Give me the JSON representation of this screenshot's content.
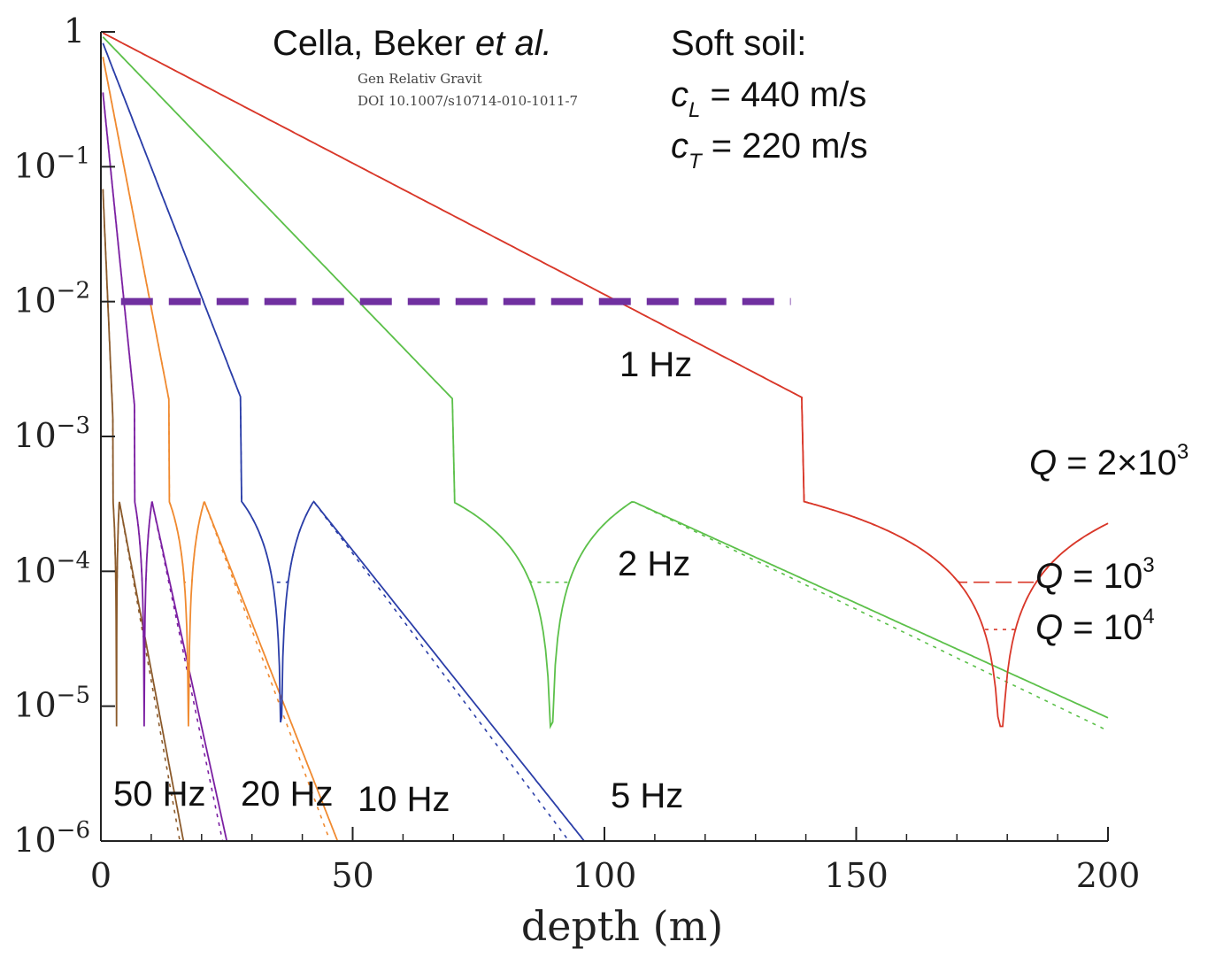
{
  "chart_data": {
    "type": "line",
    "xlabel": "depth (m)",
    "ylabel": "",
    "xlim": [
      0,
      200
    ],
    "ylim_log10": [
      -6,
      0
    ],
    "yscale": "log",
    "x_ticks": [
      0,
      50,
      100,
      150,
      200
    ],
    "y_ticks": [
      {
        "value": 1,
        "label": "1",
        "exp": ""
      },
      {
        "value": 0.1,
        "label": "10",
        "exp": "−1"
      },
      {
        "value": 0.01,
        "label": "10",
        "exp": "−2"
      },
      {
        "value": 0.001,
        "label": "10",
        "exp": "−3"
      },
      {
        "value": 0.0001,
        "label": "10",
        "exp": "−4"
      },
      {
        "value": 1e-05,
        "label": "10",
        "exp": "−5"
      },
      {
        "value": 1e-06,
        "label": "10",
        "exp": "−6"
      }
    ],
    "threshold": {
      "y": 0.01,
      "x_range": [
        4,
        137
      ],
      "color": "#7030a0"
    },
    "series": [
      {
        "name": "50 Hz",
        "color": "#8b5a2b",
        "null_at": 3.1,
        "sample_points": [
          [
            0.5,
            0.15
          ],
          [
            3.1,
            1.6e-05
          ],
          [
            4,
            0.00033
          ],
          [
            10,
            2e-05
          ],
          [
            16,
            4e-06
          ]
        ]
      },
      {
        "name": "20 Hz",
        "color": "#7b1fa2",
        "null_at": 8.6,
        "sample_points": [
          [
            0.5,
            0.5
          ],
          [
            8.6,
            1.6e-05
          ],
          [
            10,
            0.00033
          ],
          [
            20,
            1.5e-05
          ],
          [
            25,
            1e-06
          ]
        ]
      },
      {
        "name": "10 Hz",
        "color": "#f08a30",
        "null_at": 17.4,
        "sample_points": [
          [
            0.5,
            0.78
          ],
          [
            17.4,
            1.6e-05
          ],
          [
            21,
            0.00033
          ],
          [
            37,
            2e-05
          ],
          [
            47,
            1e-06
          ]
        ]
      },
      {
        "name": "5 Hz",
        "color": "#2b3ea8",
        "null_at": 35.8,
        "sample_points": [
          [
            0.5,
            0.9
          ],
          [
            35.8,
            1.6e-05
          ],
          [
            42,
            0.00033
          ],
          [
            70,
            3e-05
          ],
          [
            96,
            1e-06
          ]
        ]
      },
      {
        "name": "2 Hz",
        "color": "#5cc04a",
        "null_at": 89.5,
        "sample_points": [
          [
            0.5,
            0.95
          ],
          [
            89.5,
            1.6e-05
          ],
          [
            105,
            0.00033
          ],
          [
            150,
            8e-05
          ],
          [
            200,
            8.2e-06
          ]
        ]
      },
      {
        "name": "1 Hz",
        "color": "#d9382a",
        "null_at": 178.8,
        "sample_points": [
          [
            0.5,
            1
          ],
          [
            118,
            0.01
          ],
          [
            178.8,
            1.6e-05
          ],
          [
            200,
            0.0003
          ]
        ]
      }
    ],
    "annotations": {
      "source_title_a": "Cella, Beker ",
      "source_title_b": "et al.",
      "source_journal": "Gen Relativ Gravit",
      "source_doi": "DOI 10.1007/s10714-010-1011-7",
      "soil_title": "Soft soil:",
      "cl_sym": "c",
      "cl_sub": "L",
      "cl_val": " = 440 m/s",
      "ct_sym": "c",
      "ct_sub": "T",
      "ct_val": " = 220 m/s",
      "q1_sym": "Q",
      "q1_val": " = 2×10",
      "q1_exp": "3",
      "q2_sym": "Q",
      "q2_val": " = 10",
      "q2_exp": "3",
      "q3_sym": "Q",
      "q3_val": " = 10",
      "q3_exp": "4",
      "label_1hz": "1 Hz",
      "label_2hz": "2 Hz",
      "label_5hz": "5 Hz",
      "label_10hz": "10 Hz",
      "label_20hz": "20 Hz",
      "label_50hz": "50 Hz"
    }
  }
}
